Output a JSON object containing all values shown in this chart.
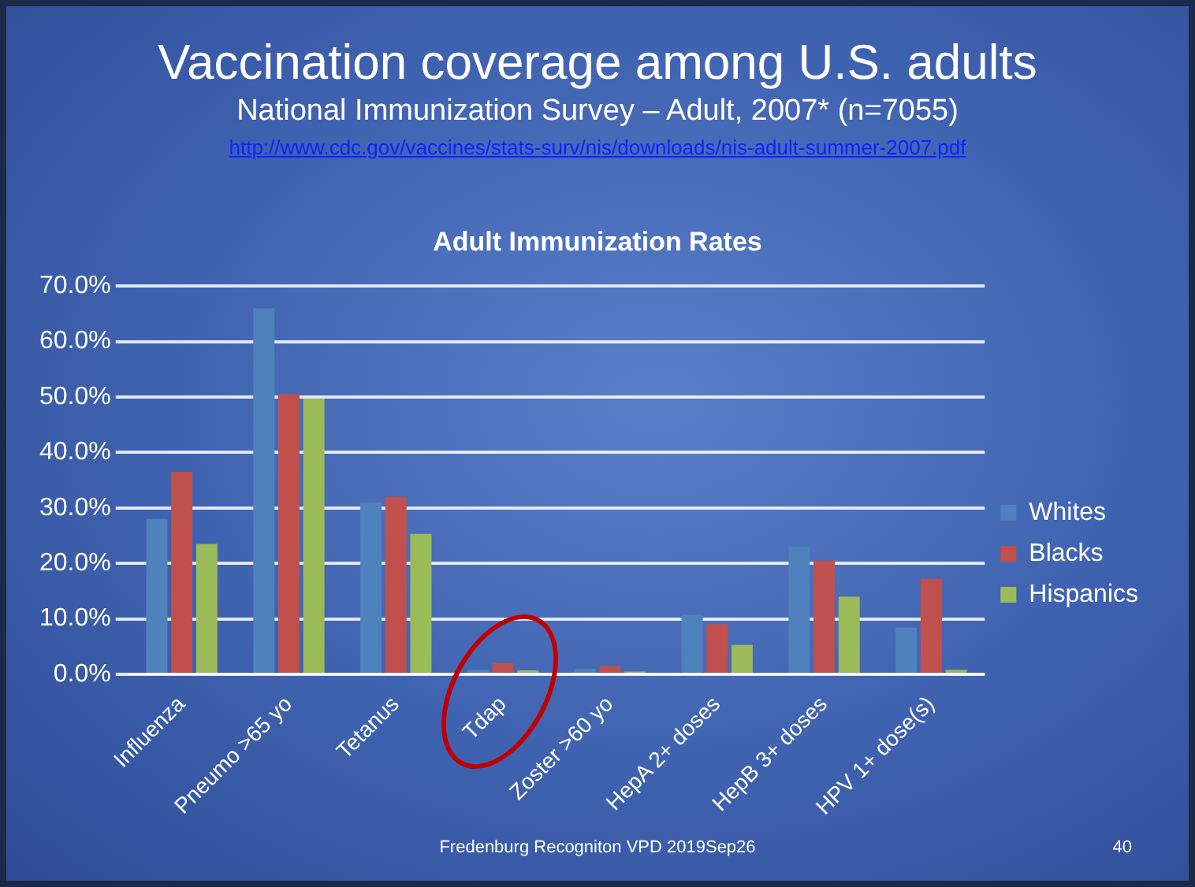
{
  "chart_data": {
    "type": "bar",
    "title": "Vaccination coverage among U.S. adults",
    "subtitle": "National Immunization Survey – Adult, 2007* (n=7055)",
    "annotations": [
      "http://www.cdc.gov/vaccines/stats-surv/nis/downloads/nis-adult-summer-2007.pdf",
      "Adult Immunization Rates",
      "Fredenburg Recogniton VPD 2019Sep26",
      "40"
    ],
    "categories": [
      "Influenza",
      "Pneumo >65 yo",
      "Tetanus",
      "Tdap",
      "Zoster >60 yo",
      "HepA 2+ doses",
      "HepB 3+ doses",
      "HPV 1+ dose(s)"
    ],
    "series": [
      {
        "name": "Whites",
        "color": "#4f81bd",
        "values": [
          28,
          66,
          31,
          0.8,
          1,
          10.7,
          23,
          8.4
        ]
      },
      {
        "name": "Blacks",
        "color": "#c0504d",
        "values": [
          36.5,
          50.5,
          32,
          2,
          1.5,
          9,
          20.5,
          17.2
        ]
      },
      {
        "name": "Hispanics",
        "color": "#9bbb59",
        "values": [
          23.5,
          49.7,
          25.3,
          0.7,
          0.5,
          5.3,
          14,
          0.8
        ]
      }
    ],
    "ylim": [
      0,
      70
    ],
    "yticks": [
      {
        "value": 0,
        "label": "0.0%"
      },
      {
        "value": 10,
        "label": "10.0%"
      },
      {
        "value": 20,
        "label": "20.0%"
      },
      {
        "value": 30,
        "label": "30.0%"
      },
      {
        "value": 40,
        "label": "40.0%"
      },
      {
        "value": 50,
        "label": "50.0%"
      },
      {
        "value": 60,
        "label": "60.0%"
      },
      {
        "value": 70,
        "label": "70.0%"
      }
    ],
    "grid": "y",
    "legend": "right"
  }
}
